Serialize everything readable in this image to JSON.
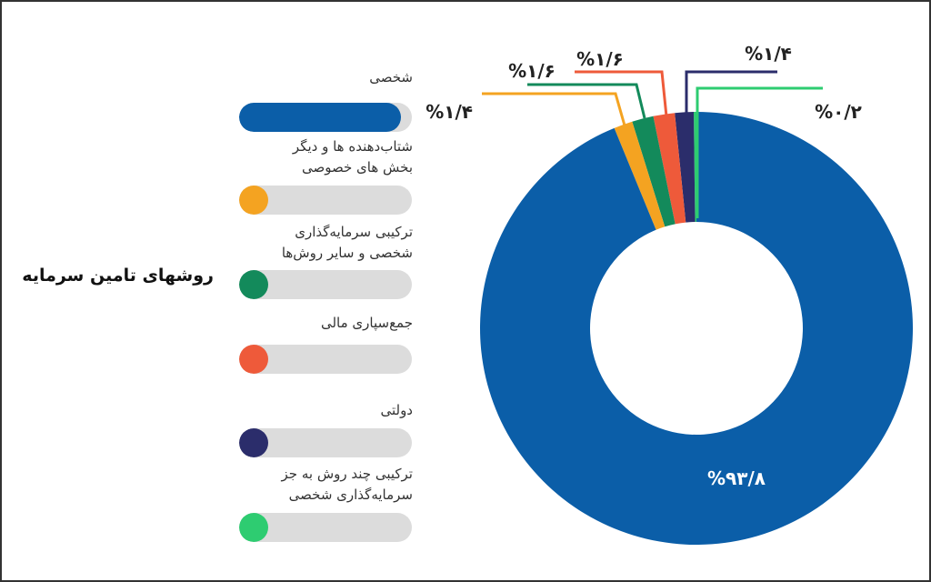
{
  "chart_data": {
    "type": "pie",
    "donut": true,
    "title": "روشهای تامین سرمایه",
    "slices": [
      {
        "name": "شخصی",
        "value": 93.8,
        "label": "%۹۳/۸",
        "color": "#0b5ea8"
      },
      {
        "name": "شتاب‌دهنده ها و دیگر بخش های خصوصی",
        "value": 1.4,
        "label": "%۱/۴",
        "color": "#f4a321"
      },
      {
        "name": "ترکیبی سرمایه‌گذاری شخصی و سایر روش‌ها",
        "value": 1.6,
        "label": "%۱/۶",
        "color": "#138a5b"
      },
      {
        "name": "جمع‌سپاری مالی",
        "value": 1.6,
        "label": "%۱/۶",
        "color": "#ee5a3a"
      },
      {
        "name": "دولتی",
        "value": 1.4,
        "label": "%۱/۴",
        "color": "#2b2d6b"
      },
      {
        "name": "ترکیبی چند روش به جز سرمایه‌گذاری شخصی",
        "value": 0.2,
        "label": "%۰/۲",
        "color": "#2ecc71"
      }
    ],
    "legend": [
      {
        "lines": [
          "شخصی"
        ]
      },
      {
        "lines": [
          "شتاب‌دهنده ها و دیگر",
          "بخش های خصوصی"
        ]
      },
      {
        "lines": [
          "ترکیبی سرمایه‌گذاری",
          "شخصی و سایر روش‌ها"
        ]
      },
      {
        "lines": [
          "جمع‌سپاری مالی"
        ]
      },
      {
        "lines": [
          "دولتی"
        ]
      },
      {
        "lines": [
          "ترکیبی چند روش به جز",
          "سرمایه‌گذاری شخصی"
        ]
      }
    ],
    "legend_placement": "left"
  }
}
